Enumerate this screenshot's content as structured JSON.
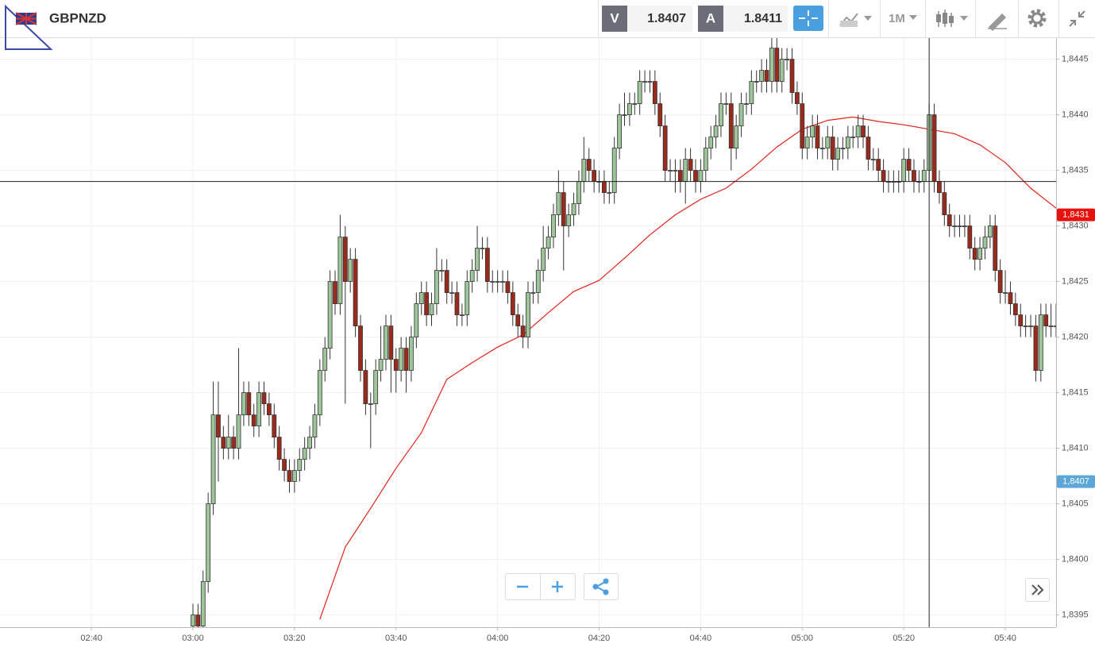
{
  "header": {
    "symbol": "GBPNZD",
    "bid_label": "V",
    "bid": 1.8407,
    "ask_label": "A",
    "ask": 1.8411,
    "timeframe": "1M"
  },
  "chart_data": {
    "type": "candlestick",
    "x": [
      "03:00",
      "03:01",
      "03:02",
      "03:03",
      "03:04",
      "03:05",
      "03:06",
      "03:07",
      "03:08",
      "03:09",
      "03:10",
      "03:11",
      "03:12",
      "03:13",
      "03:14",
      "03:15",
      "03:16",
      "03:17",
      "03:18",
      "03:19",
      "03:20",
      "03:21",
      "03:22",
      "03:23",
      "03:24",
      "03:25",
      "03:26",
      "03:27",
      "03:28",
      "03:29",
      "03:30",
      "03:31",
      "03:32",
      "03:33",
      "03:34",
      "03:35",
      "03:36",
      "03:37",
      "03:38",
      "03:39",
      "03:40",
      "03:41",
      "03:42",
      "03:43",
      "03:44",
      "03:45",
      "03:46",
      "03:47",
      "03:48",
      "03:49",
      "03:50",
      "03:51",
      "03:52",
      "03:53",
      "03:54",
      "03:55",
      "03:56",
      "03:57",
      "03:58",
      "03:59",
      "04:00",
      "04:01",
      "04:02",
      "04:03",
      "04:04",
      "04:05",
      "04:06",
      "04:07",
      "04:08",
      "04:09",
      "04:10",
      "04:11",
      "04:12",
      "04:13",
      "04:14",
      "04:15",
      "04:16",
      "04:17",
      "04:18",
      "04:19",
      "04:20",
      "04:21",
      "04:22",
      "04:23",
      "04:24",
      "04:25",
      "04:26",
      "04:27",
      "04:28",
      "04:29",
      "04:30",
      "04:31",
      "04:32",
      "04:33",
      "04:34",
      "04:35",
      "04:36",
      "04:37",
      "04:38",
      "04:39",
      "04:40",
      "04:41",
      "04:42",
      "04:43",
      "04:44",
      "04:45",
      "04:46",
      "04:47",
      "04:48",
      "04:49",
      "04:50",
      "04:51",
      "04:52",
      "04:53",
      "04:54",
      "04:55",
      "04:56",
      "04:57",
      "04:58",
      "04:59",
      "05:00",
      "05:01",
      "05:02",
      "05:03",
      "05:04",
      "05:05",
      "05:06",
      "05:07",
      "05:08",
      "05:09",
      "05:10",
      "05:11",
      "05:12",
      "05:13",
      "05:14",
      "05:15",
      "05:16",
      "05:17",
      "05:18",
      "05:19",
      "05:20",
      "05:21",
      "05:22",
      "05:23",
      "05:24",
      "05:25",
      "05:26",
      "05:27",
      "05:28",
      "05:29",
      "05:30",
      "05:31",
      "05:32",
      "05:33",
      "05:34",
      "05:35",
      "05:36",
      "05:37",
      "05:38",
      "05:39",
      "05:40",
      "05:41",
      "05:42",
      "05:43",
      "05:44",
      "05:45",
      "05:46",
      "05:47",
      "05:48",
      "05:49",
      "05:50"
    ],
    "open": [
      1.8394,
      1.8395,
      1.8394,
      1.8398,
      1.8405,
      1.8413,
      1.8411,
      1.841,
      1.8411,
      1.841,
      1.8413,
      1.8415,
      1.8413,
      1.8412,
      1.8415,
      1.8414,
      1.8413,
      1.8411,
      1.8409,
      1.8408,
      1.8407,
      1.8408,
      1.8409,
      1.841,
      1.8411,
      1.8413,
      1.8417,
      1.8419,
      1.8425,
      1.8423,
      1.8429,
      1.8425,
      1.8427,
      1.8421,
      1.8417,
      1.8414,
      1.8414,
      1.8417,
      1.8418,
      1.8421,
      1.8418,
      1.8417,
      1.8419,
      1.8417,
      1.842,
      1.8423,
      1.8424,
      1.8422,
      1.8423,
      1.8426,
      1.8426,
      1.8424,
      1.8424,
      1.8422,
      1.8422,
      1.8425,
      1.8426,
      1.8428,
      1.8428,
      1.8425,
      1.8425,
      1.8425,
      1.8425,
      1.8424,
      1.8422,
      1.8421,
      1.842,
      1.8424,
      1.8424,
      1.8426,
      1.8428,
      1.8429,
      1.8431,
      1.8433,
      1.843,
      1.8431,
      1.8432,
      1.8434,
      1.8436,
      1.8435,
      1.8434,
      1.8434,
      1.8433,
      1.8433,
      1.8437,
      1.844,
      1.844,
      1.8441,
      1.8441,
      1.8443,
      1.8443,
      1.8443,
      1.8441,
      1.8439,
      1.8435,
      1.8435,
      1.8435,
      1.8434,
      1.8436,
      1.8435,
      1.8434,
      1.8435,
      1.8437,
      1.8438,
      1.8439,
      1.8441,
      1.8441,
      1.8437,
      1.8439,
      1.8441,
      1.8441,
      1.8443,
      1.8443,
      1.8444,
      1.8443,
      1.8446,
      1.8443,
      1.8445,
      1.8445,
      1.8442,
      1.8441,
      1.8437,
      1.8438,
      1.8439,
      1.8437,
      1.8437,
      1.8438,
      1.8436,
      1.8437,
      1.8437,
      1.8438,
      1.8438,
      1.8439,
      1.8438,
      1.8436,
      1.8436,
      1.8435,
      1.8434,
      1.8434,
      1.8434,
      1.8434,
      1.8436,
      1.8435,
      1.8434,
      1.8434,
      1.8435,
      1.844,
      1.8434,
      1.8433,
      1.8431,
      1.843,
      1.843,
      1.843,
      1.843,
      1.8428,
      1.8427,
      1.8428,
      1.8429,
      1.843,
      1.8426,
      1.8424,
      1.8424,
      1.8423,
      1.8422,
      1.8421,
      1.8421,
      1.8421,
      1.8417,
      1.8422,
      1.8421,
      1.8421
    ],
    "high": [
      1.8396,
      1.8396,
      1.8399,
      1.8406,
      1.8416,
      1.8416,
      1.8412,
      1.8413,
      1.8412,
      1.8419,
      1.8416,
      1.8416,
      1.8414,
      1.8416,
      1.8416,
      1.8415,
      1.8414,
      1.8412,
      1.841,
      1.8409,
      1.8409,
      1.841,
      1.8411,
      1.8412,
      1.8414,
      1.8418,
      1.842,
      1.8426,
      1.8426,
      1.8431,
      1.843,
      1.8428,
      1.8428,
      1.8422,
      1.8418,
      1.8415,
      1.8418,
      1.8421,
      1.8422,
      1.8422,
      1.8419,
      1.842,
      1.842,
      1.8421,
      1.8424,
      1.8425,
      1.8425,
      1.8424,
      1.8428,
      1.8427,
      1.8427,
      1.8425,
      1.8425,
      1.8423,
      1.8426,
      1.8427,
      1.843,
      1.8429,
      1.8429,
      1.8426,
      1.8426,
      1.8426,
      1.8426,
      1.8425,
      1.8423,
      1.8422,
      1.8425,
      1.8425,
      1.8427,
      1.843,
      1.843,
      1.8432,
      1.8435,
      1.8434,
      1.8432,
      1.8433,
      1.8435,
      1.8438,
      1.8437,
      1.8436,
      1.8435,
      1.8435,
      1.8434,
      1.8438,
      1.8441,
      1.8442,
      1.8442,
      1.8442,
      1.8444,
      1.8444,
      1.8444,
      1.8444,
      1.8442,
      1.844,
      1.8436,
      1.8436,
      1.8436,
      1.8437,
      1.8437,
      1.8436,
      1.8436,
      1.8438,
      1.8439,
      1.844,
      1.8442,
      1.8442,
      1.8442,
      1.844,
      1.8442,
      1.8442,
      1.8444,
      1.8444,
      1.8445,
      1.8445,
      1.8447,
      1.8447,
      1.8446,
      1.8446,
      1.8446,
      1.8443,
      1.8442,
      1.8439,
      1.844,
      1.844,
      1.8438,
      1.8439,
      1.8439,
      1.8438,
      1.8438,
      1.8439,
      1.8439,
      1.844,
      1.844,
      1.8439,
      1.8437,
      1.8437,
      1.8436,
      1.8435,
      1.8435,
      1.8435,
      1.8437,
      1.8437,
      1.8436,
      1.8435,
      1.8436,
      1.8441,
      1.8441,
      1.8435,
      1.8434,
      1.8432,
      1.8431,
      1.8431,
      1.8431,
      1.8431,
      1.8429,
      1.8429,
      1.843,
      1.8431,
      1.8431,
      1.8427,
      1.8426,
      1.8425,
      1.8424,
      1.8423,
      1.8422,
      1.8422,
      1.8422,
      1.8423,
      1.8423,
      1.8423,
      1.8423
    ],
    "low": [
      1.8393,
      1.8393,
      1.8393,
      1.8397,
      1.8404,
      1.8407,
      1.8409,
      1.8409,
      1.8409,
      1.8409,
      1.8412,
      1.8412,
      1.8411,
      1.8411,
      1.8413,
      1.8412,
      1.841,
      1.8408,
      1.8407,
      1.8406,
      1.8406,
      1.8407,
      1.8408,
      1.8409,
      1.841,
      1.8412,
      1.8416,
      1.8418,
      1.8422,
      1.8422,
      1.8414,
      1.8424,
      1.842,
      1.8416,
      1.8413,
      1.841,
      1.8413,
      1.8416,
      1.8417,
      1.8415,
      1.8415,
      1.8416,
      1.8415,
      1.8416,
      1.8419,
      1.8422,
      1.8421,
      1.8421,
      1.8422,
      1.8425,
      1.8423,
      1.8423,
      1.8421,
      1.8421,
      1.8421,
      1.8424,
      1.8425,
      1.8427,
      1.8424,
      1.8424,
      1.8424,
      1.8424,
      1.8423,
      1.8421,
      1.842,
      1.8419,
      1.8419,
      1.8423,
      1.8423,
      1.8425,
      1.8427,
      1.8428,
      1.843,
      1.8426,
      1.8429,
      1.843,
      1.8431,
      1.8433,
      1.8434,
      1.8433,
      1.8433,
      1.8432,
      1.8432,
      1.8432,
      1.8436,
      1.8439,
      1.8439,
      1.844,
      1.844,
      1.8442,
      1.8442,
      1.844,
      1.8438,
      1.8434,
      1.8434,
      1.8433,
      1.8433,
      1.8432,
      1.8434,
      1.8433,
      1.8433,
      1.8434,
      1.8436,
      1.8437,
      1.8438,
      1.844,
      1.8435,
      1.8436,
      1.8438,
      1.844,
      1.844,
      1.8442,
      1.8442,
      1.8442,
      1.8442,
      1.8442,
      1.8442,
      1.8444,
      1.8441,
      1.844,
      1.8436,
      1.8436,
      1.8437,
      1.8436,
      1.8436,
      1.8436,
      1.8435,
      1.8435,
      1.8436,
      1.8436,
      1.8437,
      1.8437,
      1.8437,
      1.8435,
      1.8435,
      1.8434,
      1.8433,
      1.8433,
      1.8433,
      1.8433,
      1.8433,
      1.8434,
      1.8433,
      1.8433,
      1.8433,
      1.8434,
      1.8433,
      1.8432,
      1.843,
      1.8429,
      1.8429,
      1.8429,
      1.8429,
      1.8427,
      1.8426,
      1.8426,
      1.8427,
      1.8428,
      1.8425,
      1.8423,
      1.8423,
      1.8422,
      1.8421,
      1.842,
      1.842,
      1.842,
      1.8416,
      1.8416,
      1.842,
      1.842,
      1.842
    ],
    "close": [
      1.8395,
      1.8394,
      1.8398,
      1.8405,
      1.8413,
      1.8411,
      1.841,
      1.8411,
      1.841,
      1.8413,
      1.8415,
      1.8413,
      1.8412,
      1.8415,
      1.8414,
      1.8413,
      1.8411,
      1.8409,
      1.8408,
      1.8407,
      1.8408,
      1.8409,
      1.841,
      1.8411,
      1.8413,
      1.8417,
      1.8419,
      1.8425,
      1.8423,
      1.8429,
      1.8425,
      1.8427,
      1.8421,
      1.8417,
      1.8414,
      1.8414,
      1.8417,
      1.8418,
      1.8421,
      1.8418,
      1.8417,
      1.8419,
      1.8417,
      1.842,
      1.8423,
      1.8424,
      1.8422,
      1.8423,
      1.8426,
      1.8426,
      1.8424,
      1.8424,
      1.8422,
      1.8422,
      1.8425,
      1.8426,
      1.8428,
      1.8428,
      1.8425,
      1.8425,
      1.8425,
      1.8425,
      1.8424,
      1.8422,
      1.8421,
      1.842,
      1.8424,
      1.8424,
      1.8426,
      1.8428,
      1.8429,
      1.8431,
      1.8433,
      1.843,
      1.8431,
      1.8432,
      1.8434,
      1.8436,
      1.8435,
      1.8434,
      1.8434,
      1.8433,
      1.8433,
      1.8437,
      1.844,
      1.844,
      1.8441,
      1.8441,
      1.8443,
      1.8443,
      1.8443,
      1.8441,
      1.8439,
      1.8435,
      1.8435,
      1.8435,
      1.8434,
      1.8436,
      1.8435,
      1.8434,
      1.8435,
      1.8437,
      1.8438,
      1.8439,
      1.8441,
      1.8441,
      1.8437,
      1.8439,
      1.8441,
      1.8441,
      1.8443,
      1.8443,
      1.8444,
      1.8443,
      1.8446,
      1.8443,
      1.8445,
      1.8445,
      1.8442,
      1.8441,
      1.8437,
      1.8438,
      1.8439,
      1.8437,
      1.8437,
      1.8438,
      1.8436,
      1.8437,
      1.8437,
      1.8438,
      1.8438,
      1.8439,
      1.8438,
      1.8436,
      1.8436,
      1.8435,
      1.8434,
      1.8434,
      1.8434,
      1.8434,
      1.8436,
      1.8435,
      1.8434,
      1.8434,
      1.8435,
      1.844,
      1.8434,
      1.8433,
      1.8431,
      1.843,
      1.843,
      1.843,
      1.843,
      1.8428,
      1.8427,
      1.8428,
      1.8429,
      1.843,
      1.8426,
      1.8424,
      1.8424,
      1.8423,
      1.8422,
      1.8421,
      1.8421,
      1.8421,
      1.8417,
      1.8422,
      1.8421,
      1.8421,
      1.8421
    ],
    "up_color": "#9fc59a",
    "down_color": "#9a2a1c",
    "overlay": {
      "color": "#e2231a",
      "x": [
        "03:25",
        "03:30",
        "03:35",
        "03:40",
        "03:45",
        "03:50",
        "03:55",
        "04:00",
        "04:05",
        "04:10",
        "04:15",
        "04:20",
        "04:25",
        "04:30",
        "04:35",
        "04:40",
        "04:45",
        "04:50",
        "04:55",
        "05:00",
        "05:05",
        "05:10",
        "05:15",
        "05:20",
        "05:25",
        "05:30",
        "05:35",
        "05:40",
        "05:45",
        "05:50"
      ],
      "values": [
        1.83946,
        1.84011,
        1.84046,
        1.84082,
        1.84114,
        1.84162,
        1.84177,
        1.84191,
        1.84202,
        1.84222,
        1.84241,
        1.84251,
        1.84271,
        1.84292,
        1.8431,
        1.84324,
        1.84334,
        1.84351,
        1.84371,
        1.84387,
        1.84395,
        1.84398,
        1.84394,
        1.84391,
        1.84387,
        1.84383,
        1.84373,
        1.84357,
        1.84334,
        1.84316
      ]
    },
    "price_markers": [
      {
        "value": 1.8431,
        "label": "1,8431",
        "color": "#e8120c"
      },
      {
        "value": 1.8407,
        "label": "1,8407",
        "color": "#5aa7d8"
      }
    ],
    "crosshair": {
      "x": "05:25",
      "y": 1.8434
    },
    "xlim": [
      "02:22",
      "05:50"
    ],
    "xticks": [
      "02:40",
      "03:00",
      "03:20",
      "03:40",
      "04:00",
      "04:20",
      "04:40",
      "05:00",
      "05:20",
      "05:40"
    ],
    "ylim": [
      1.83939,
      1.84469
    ],
    "yticks": [
      {
        "value": 1.8395,
        "label": "1,8395"
      },
      {
        "value": 1.84,
        "label": "1,8400"
      },
      {
        "value": 1.8405,
        "label": "1,8405"
      },
      {
        "value": 1.841,
        "label": "1,8410"
      },
      {
        "value": 1.8415,
        "label": "1,8415"
      },
      {
        "value": 1.842,
        "label": "1,8420"
      },
      {
        "value": 1.8425,
        "label": "1,8425"
      },
      {
        "value": 1.843,
        "label": "1,8430"
      },
      {
        "value": 1.8435,
        "label": "1,8435"
      },
      {
        "value": 1.844,
        "label": "1,8440"
      },
      {
        "value": 1.8445,
        "label": "1,8445"
      }
    ],
    "grid": true
  }
}
